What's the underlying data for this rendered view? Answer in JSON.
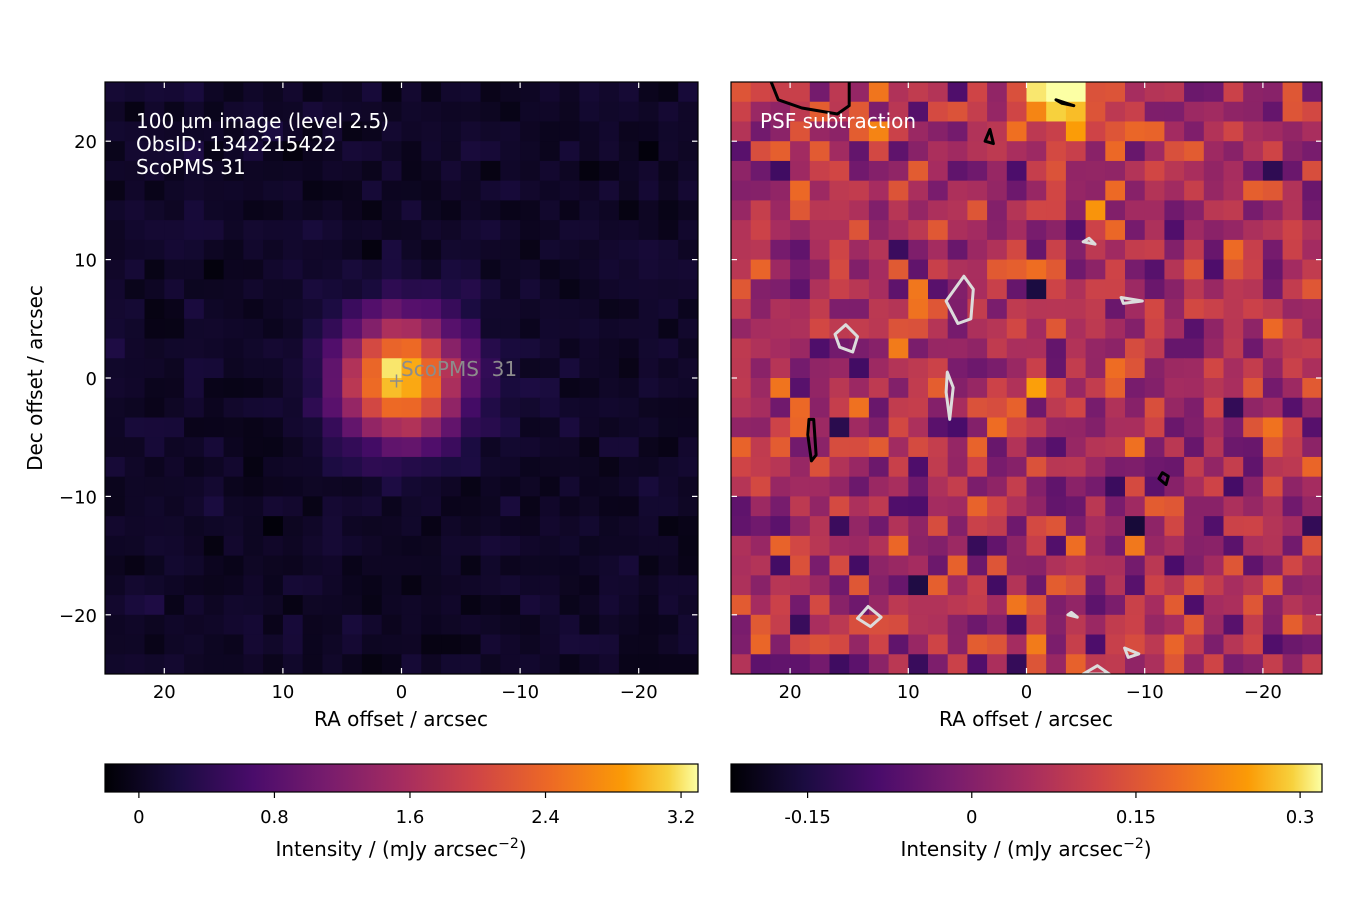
{
  "chart_data": [
    {
      "type": "heatmap",
      "name": "left-panel",
      "annotation_lines": [
        "100 µm image (level 2.5)",
        "ObsID: 1342215422",
        "ScoPMS 31"
      ],
      "source_label": "ScoPMS  31",
      "source_position": [
        0,
        0
      ],
      "xlabel": "RA offset / arcsec",
      "ylabel": "Dec offset / arcsec",
      "xlim": [
        25,
        -25
      ],
      "ylim": [
        -25,
        25
      ],
      "xticks": [
        20,
        10,
        0,
        -10,
        -20
      ],
      "xtick_labels": [
        "20",
        "10",
        "0",
        "−10",
        "−20"
      ],
      "yticks": [
        20,
        10,
        0,
        -10,
        -20
      ],
      "ytick_labels": [
        "20",
        "10",
        "0",
        "−10",
        "−20"
      ],
      "colormap": "inferno",
      "colorbar": {
        "label": "Intensity / (mJy arcsec",
        "label_exp": "−2",
        "label_tail": ")",
        "range": [
          -0.2,
          3.3
        ],
        "ticks": [
          0,
          0.8,
          1.6,
          2.4,
          3.2
        ],
        "tick_labels": [
          "0",
          "0.8",
          "1.6",
          "2.4",
          "3.2"
        ]
      },
      "source_model": {
        "peak": 3.1,
        "sigma_arcsec": 3.6,
        "background": 0.05,
        "noise": 0.07
      }
    },
    {
      "type": "heatmap",
      "name": "right-panel",
      "annotation_lines": [
        "PSF subtraction"
      ],
      "xlabel": "RA offset / arcsec",
      "xlim": [
        25,
        -25
      ],
      "ylim": [
        -25,
        25
      ],
      "xticks": [
        20,
        10,
        0,
        -10,
        -20
      ],
      "xtick_labels": [
        "20",
        "10",
        "0",
        "−10",
        "−20"
      ],
      "colormap": "inferno",
      "colorbar": {
        "label": "Intensity / (mJy arcsec",
        "label_exp": "−2",
        "label_tail": ")",
        "range": [
          -0.22,
          0.32
        ],
        "ticks": [
          -0.15,
          0,
          0.15,
          0.3
        ],
        "tick_labels": [
          "-0.15",
          "0",
          "0.15",
          "0.3"
        ]
      },
      "contours": {
        "positive_color": "#000000",
        "negative_color": "#dcdcdc",
        "positive": [
          [
            [
              22,
              26
            ],
            [
              21,
              23.5
            ],
            [
              19,
              22.8
            ],
            [
              16,
              22.3
            ],
            [
              15,
              23
            ],
            [
              15,
              26
            ]
          ],
          [
            [
              18.5,
              -4.8
            ],
            [
              18.2,
              -7
            ],
            [
              17.8,
              -6.5
            ],
            [
              18,
              -3.5
            ],
            [
              18.4,
              -3.5
            ]
          ],
          [
            [
              -11.5,
              -8
            ],
            [
              -12,
              -8.3
            ],
            [
              -11.8,
              -9
            ],
            [
              -11.2,
              -8.5
            ]
          ],
          [
            [
              3.5,
              20
            ],
            [
              2.8,
              19.8
            ],
            [
              3.1,
              21
            ]
          ],
          [
            [
              -2.5,
              23.5
            ],
            [
              -4,
              23
            ],
            [
              -3,
              23.2
            ]
          ]
        ],
        "negative": [
          [
            [
              15.3,
              4.5
            ],
            [
              14.3,
              3.5
            ],
            [
              14.7,
              2.2
            ],
            [
              15.8,
              2.6
            ],
            [
              16.2,
              3.7
            ]
          ],
          [
            [
              6.8,
              6.5
            ],
            [
              5.3,
              8.6
            ],
            [
              4.5,
              7.5
            ],
            [
              4.7,
              5
            ],
            [
              5.8,
              4.6
            ]
          ],
          [
            [
              6.7,
              0.5
            ],
            [
              6.8,
              -1.2
            ],
            [
              6.5,
              -3.5
            ],
            [
              6.2,
              -0.8
            ]
          ],
          [
            [
              13.4,
              -19.3
            ],
            [
              12.3,
              -20.2
            ],
            [
              13.2,
              -21
            ],
            [
              14.3,
              -20.3
            ]
          ],
          [
            [
              -8,
              6.8
            ],
            [
              -9.8,
              6.5
            ],
            [
              -8.2,
              6.3
            ]
          ],
          [
            [
              -4.8,
              11.5
            ],
            [
              -5.8,
              11.3
            ],
            [
              -5.3,
              11.8
            ]
          ],
          [
            [
              -8.3,
              -22.8
            ],
            [
              -9.5,
              -23.3
            ],
            [
              -8.6,
              -23.6
            ]
          ],
          [
            [
              -3.5,
              -20
            ],
            [
              -4.3,
              -20.2
            ],
            [
              -3.8,
              -19.8
            ]
          ],
          [
            [
              -4.8,
              -25
            ],
            [
              -6,
              -24.3
            ],
            [
              -7,
              -25
            ]
          ]
        ]
      },
      "residual_model": {
        "mean": 0.05,
        "noise": 0.07,
        "blob_peak": 0.32,
        "blob_position": [
          -3,
          24
        ],
        "blob_sigma": 2.5
      }
    }
  ]
}
